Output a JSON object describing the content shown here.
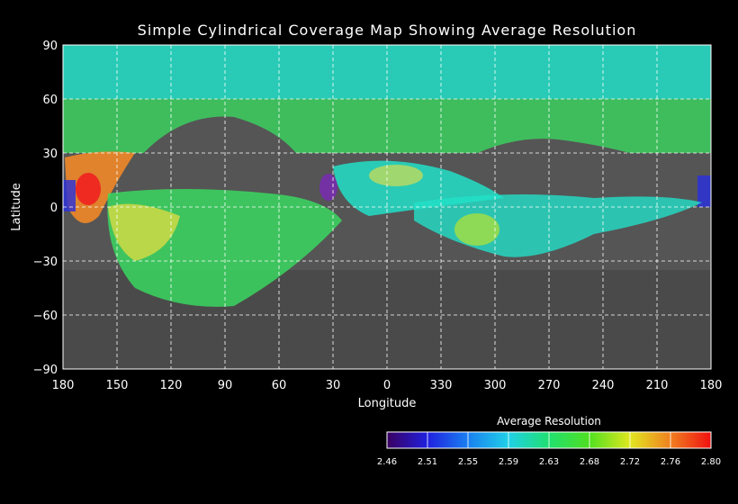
{
  "title": "Simple Cylindrical Coverage Map Showing Average Resolution",
  "map": {
    "xlabel": "Longitude",
    "ylabel": "Latitude",
    "lon_ticks": [
      "180",
      "150",
      "120",
      "90",
      "60",
      "30",
      "0",
      "330",
      "300",
      "270",
      "240",
      "210",
      "180"
    ],
    "lat_ticks": [
      "90",
      "60",
      "30",
      "0",
      "−30",
      "−60",
      "−90"
    ],
    "grid": true,
    "background": "grayscale-surface",
    "coverage_colors": [
      "#7a28b8",
      "#2830e0",
      "#1ea0f0",
      "#22e0c8",
      "#38e060",
      "#a8e040",
      "#f0e040",
      "#f08828",
      "#f02020"
    ]
  },
  "colorbar": {
    "title": "Average Resolution",
    "tick_labels": [
      "2.46",
      "2.51",
      "2.55",
      "2.59",
      "2.63",
      "2.68",
      "2.72",
      "2.76",
      "2.80"
    ],
    "colors": [
      "#4a0a70",
      "#2020d0",
      "#1890f0",
      "#20d0e8",
      "#20e080",
      "#30e030",
      "#b0e830",
      "#f0a020",
      "#f02020"
    ]
  }
}
